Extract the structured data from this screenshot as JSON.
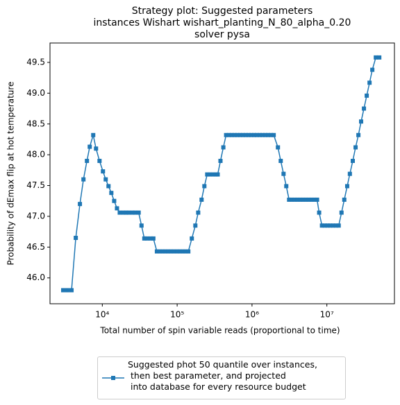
{
  "chart_data": {
    "type": "line",
    "title": "Strategy plot: Suggested parameters\ninstances Wishart wishart_planting_N_80_alpha_0.20\nsolver pysa",
    "xlabel": "Total number of spin variable reads (proportional to time)",
    "ylabel": "Probability of dEmax flip at hot temperature",
    "xscale": "log",
    "xlim": [
      2000,
      80000000
    ],
    "xticks": [
      {
        "value": 10000,
        "label": "10⁴"
      },
      {
        "value": 100000,
        "label": "10⁵"
      },
      {
        "value": 1000000,
        "label": "10⁶"
      },
      {
        "value": 10000000,
        "label": "10⁷"
      }
    ],
    "ylim": [
      45.58,
      49.815
    ],
    "yticks": [
      {
        "value": 46,
        "label": "46.0"
      },
      46.5,
      {
        "value": 47,
        "label": "47.0"
      },
      47.5,
      {
        "value": 48,
        "label": "48.0"
      },
      48.5,
      {
        "value": 49,
        "label": "49.0"
      },
      49.5
    ],
    "grid": false,
    "legend": "below",
    "x": [
      3000,
      3410,
      3880,
      4420,
      5020,
      5600,
      6230,
      6790,
      7560,
      8240,
      9180,
      10200,
      11100,
      12100,
      13200,
      14400,
      15700,
      17100,
      19100,
      20800,
      22600,
      25200,
      27500,
      30600,
      33400,
      36400,
      39600,
      44200,
      48100,
      53600,
      58400,
      63600,
      69300,
      75600,
      82400,
      89800,
      100000,
      109000,
      119000,
      129000,
      141000,
      157000,
      175000,
      191000,
      212000,
      231000,
      252000,
      275000,
      300000,
      327000,
      348000,
      379000,
      414000,
      451000,
      492000,
      536000,
      584000,
      636000,
      693000,
      756000,
      824000,
      898000,
      979000,
      1070000,
      1160000,
      1270000,
      1380000,
      1510000,
      1640000,
      1790000,
      1950000,
      2220000,
      2420000,
      2640000,
      2870000,
      3130000,
      3410000,
      3720000,
      4050000,
      4420000,
      4810000,
      5250000,
      5710000,
      6230000,
      6790000,
      7400000,
      7890000,
      8600000,
      9380000,
      10200000,
      11100000,
      12100000,
      13200000,
      14400000,
      15700000,
      17100000,
      18700000,
      20300000,
      22200000,
      24200000,
      26400000,
      28700000,
      31300000,
      34100000,
      37200000,
      40500000,
      45100000,
      50200000
    ],
    "series": [
      {
        "name": "Suggested phot 50 quantile over instances,\n then best parameter, and projected\n into database for every resource budget",
        "color": "#1f77b4",
        "values": [
          45.8,
          45.8,
          45.8,
          46.65,
          47.2,
          47.6,
          47.9,
          48.13,
          48.32,
          48.1,
          47.9,
          47.73,
          47.6,
          47.49,
          47.38,
          47.25,
          47.13,
          47.06,
          47.06,
          47.06,
          47.06,
          47.06,
          47.06,
          47.06,
          46.85,
          46.64,
          46.64,
          46.64,
          46.64,
          46.43,
          46.43,
          46.43,
          46.43,
          46.43,
          46.43,
          46.43,
          46.43,
          46.43,
          46.43,
          46.43,
          46.43,
          46.64,
          46.85,
          47.06,
          47.27,
          47.49,
          47.68,
          47.68,
          47.68,
          47.68,
          47.68,
          47.9,
          48.12,
          48.32,
          48.32,
          48.32,
          48.32,
          48.32,
          48.32,
          48.32,
          48.32,
          48.32,
          48.32,
          48.32,
          48.32,
          48.32,
          48.32,
          48.32,
          48.32,
          48.32,
          48.32,
          48.12,
          47.9,
          47.69,
          47.49,
          47.27,
          47.27,
          47.27,
          47.27,
          47.27,
          47.27,
          47.27,
          47.27,
          47.27,
          47.27,
          47.27,
          47.06,
          46.85,
          46.85,
          46.85,
          46.85,
          46.85,
          46.85,
          46.85,
          47.06,
          47.27,
          47.49,
          47.69,
          47.9,
          48.12,
          48.32,
          48.54,
          48.75,
          48.96,
          49.17,
          49.38,
          49.58,
          49.58
        ]
      }
    ]
  }
}
